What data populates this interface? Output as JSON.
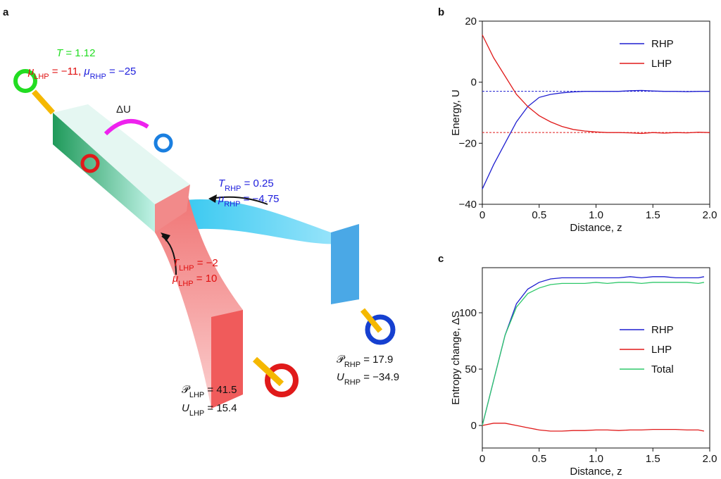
{
  "illustration": {
    "panel_label": "a",
    "annotations": [
      {
        "segments": [
          {
            "t": "T",
            "i": true,
            "color": "#22dd22"
          },
          {
            "t": " = 1.12",
            "color": "#22dd22"
          }
        ]
      },
      {
        "segments": [
          {
            "t": "μ",
            "i": true,
            "color": "#e01010"
          },
          {
            "sub": "LHP",
            "color": "#e01010"
          },
          {
            "t": " = −11, ",
            "color": "#e01010"
          },
          {
            "t": "μ",
            "i": true,
            "color": "#2020dd"
          },
          {
            "sub": "RHP",
            "color": "#2020dd"
          },
          {
            "t": " = −25",
            "color": "#2020dd"
          }
        ]
      },
      {
        "segments": [
          {
            "t": "ΔU",
            "color": "#222"
          }
        ]
      },
      {
        "segments": [
          {
            "t": "T",
            "i": true,
            "color": "#2020dd"
          },
          {
            "sub": "RHP",
            "color": "#2020dd"
          },
          {
            "t": " = 0.25",
            "color": "#2020dd"
          }
        ]
      },
      {
        "segments": [
          {
            "t": "μ",
            "i": true,
            "color": "#2020dd"
          },
          {
            "sub": "RHP",
            "color": "#2020dd"
          },
          {
            "t": " = −4.75",
            "color": "#2020dd"
          }
        ]
      },
      {
        "segments": [
          {
            "t": "T",
            "i": true,
            "color": "#e01010"
          },
          {
            "sub": "LHP",
            "color": "#e01010"
          },
          {
            "t": " = −2",
            "color": "#e01010"
          }
        ]
      },
      {
        "segments": [
          {
            "t": "μ",
            "i": true,
            "color": "#e01010"
          },
          {
            "sub": "LHP",
            "color": "#e01010"
          },
          {
            "t": " = 10",
            "color": "#e01010"
          }
        ]
      },
      {
        "segments": [
          {
            "t": "𝒫",
            "color": "#111"
          },
          {
            "sub": "RHP",
            "color": "#111"
          },
          {
            "t": " = 17.9",
            "color": "#111"
          }
        ]
      },
      {
        "segments": [
          {
            "t": "U",
            "i": true,
            "color": "#111"
          },
          {
            "sub": "RHP",
            "color": "#111"
          },
          {
            "t": " = −34.9",
            "color": "#111"
          }
        ]
      },
      {
        "segments": [
          {
            "t": "𝒫",
            "color": "#111"
          },
          {
            "sub": "LHP",
            "color": "#111"
          },
          {
            "t": " = 41.5",
            "color": "#111"
          }
        ]
      },
      {
        "segments": [
          {
            "t": "U",
            "i": true,
            "color": "#111"
          },
          {
            "sub": "LHP",
            "color": "#111"
          },
          {
            "t": " = 15.4",
            "color": "#111"
          }
        ]
      }
    ]
  },
  "chart_data": [
    {
      "type": "line",
      "panel_label": "b",
      "x_label": "Distance, z",
      "y_label": "Energy, U",
      "x": [
        0,
        0.1,
        0.2,
        0.3,
        0.4,
        0.5,
        0.6,
        0.7,
        0.8,
        0.9,
        1.0,
        1.1,
        1.2,
        1.3,
        1.4,
        1.5,
        1.6,
        1.7,
        1.8,
        1.9,
        2.0
      ],
      "series": [
        {
          "name": "RHP",
          "color": "#1f1fd0",
          "values": [
            -35,
            -27,
            -20,
            -13,
            -8,
            -5,
            -4,
            -3.5,
            -3.2,
            -3,
            -3,
            -3,
            -3,
            -2.8,
            -2.7,
            -2.9,
            -3,
            -3,
            -3.1,
            -3,
            -3
          ]
        },
        {
          "name": "LHP",
          "color": "#e01a1a",
          "values": [
            15.5,
            8,
            2,
            -4,
            -8,
            -11,
            -13,
            -14.5,
            -15.5,
            -16,
            -16.3,
            -16.5,
            -16.5,
            -16.6,
            -16.8,
            -16.5,
            -16.7,
            -16.5,
            -16.6,
            -16.4,
            -16.5
          ]
        }
      ],
      "reference_lines": [
        {
          "value": -3,
          "color": "#1f1fd0"
        },
        {
          "value": -16.5,
          "color": "#e01a1a"
        }
      ],
      "xlim": [
        0,
        2
      ],
      "xticks": [
        0,
        0.5,
        {
          "value": 1,
          "label": "1.0"
        },
        1.5,
        {
          "value": 2,
          "label": "2.0"
        }
      ],
      "ylim": [
        -40,
        20
      ],
      "yticks": [
        {
          "value": -40,
          "label": "−40"
        },
        {
          "value": -20,
          "label": "−20"
        },
        0,
        20
      ],
      "legend": "upper right"
    },
    {
      "type": "line",
      "panel_label": "c",
      "x_label": "Distance, z",
      "y_label": "Entropy change, ΔS",
      "x": [
        0,
        0.1,
        0.2,
        0.3,
        0.4,
        0.5,
        0.6,
        0.7,
        0.8,
        0.9,
        1.0,
        1.1,
        1.2,
        1.3,
        1.4,
        1.5,
        1.6,
        1.7,
        1.8,
        1.9,
        1.95
      ],
      "series": [
        {
          "name": "RHP",
          "color": "#1f1fd0",
          "values": [
            0,
            40,
            80,
            108,
            121,
            127,
            130,
            131,
            131,
            131,
            131,
            131,
            131,
            132,
            131,
            132,
            132,
            131,
            131,
            131,
            132
          ]
        },
        {
          "name": "LHP",
          "color": "#e01a1a",
          "values": [
            0,
            2,
            2,
            0,
            -2,
            -4,
            -5,
            -5,
            -4.5,
            -4.5,
            -4,
            -4,
            -4.5,
            -4,
            -4,
            -3.5,
            -3.5,
            -3.5,
            -4,
            -4,
            -5
          ]
        },
        {
          "name": "Total",
          "color": "#2ec86a",
          "values": [
            0,
            40,
            80,
            105,
            117,
            122,
            125,
            126,
            126,
            126,
            127,
            126,
            127,
            127,
            126,
            127,
            127,
            127,
            127,
            126,
            127
          ]
        }
      ],
      "xlim": [
        0,
        2
      ],
      "xticks": [
        0,
        0.5,
        {
          "value": 1,
          "label": "1.0"
        },
        1.5,
        {
          "value": 2,
          "label": "2.0"
        }
      ],
      "ylim": [
        -20,
        140
      ],
      "yticks": [
        0,
        50,
        100
      ],
      "legend": "center right"
    }
  ]
}
